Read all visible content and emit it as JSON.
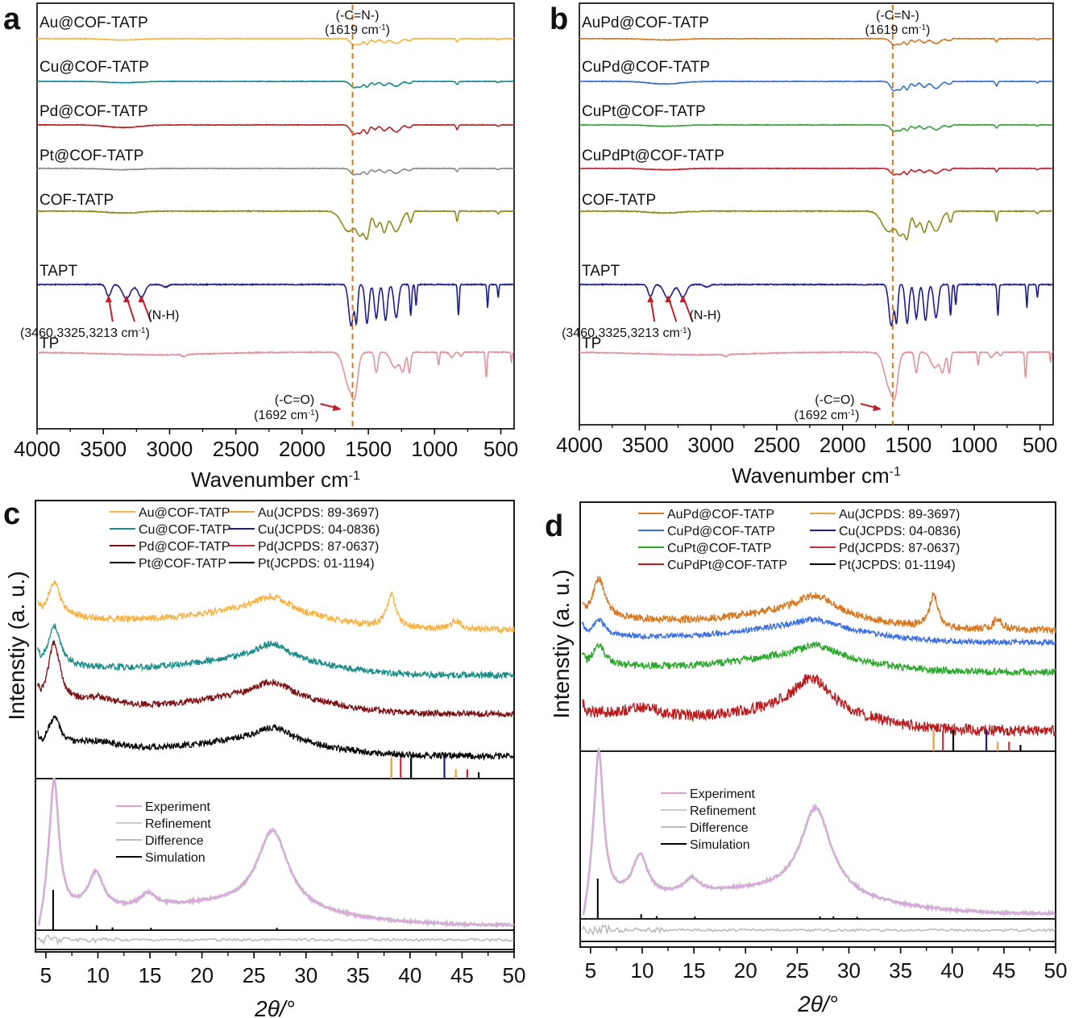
{
  "figure": {
    "panels": [
      "a",
      "b",
      "c",
      "d"
    ]
  },
  "chart_data": [
    {
      "panel": "a",
      "type": "line",
      "title": "",
      "xlabel": "Wavenumber cm-1",
      "xlabel_main": "Wavenumber cm",
      "xlabel_sup": "-1",
      "ylabel": "",
      "xlim": [
        4000,
        400
      ],
      "xticks": [
        4000,
        3500,
        3000,
        2500,
        2000,
        1500,
        1000,
        500
      ],
      "reference_line": {
        "x": 1619,
        "label1": "(-C=N-)",
        "label2": "(1619 cm",
        "sup": "-1",
        "close": ")",
        "color": "#d07a2a"
      },
      "series": [
        {
          "name": "Au@COF-TATP",
          "color": "#f2b441",
          "style": "cof"
        },
        {
          "name": "Cu@COF-TATP",
          "color": "#1f8a8c",
          "style": "cof"
        },
        {
          "name": "Pd@COF-TATP",
          "color": "#b3262a",
          "style": "cofdeep"
        },
        {
          "name": "Pt@COF-TATP",
          "color": "#8a8a8a",
          "style": "cof"
        },
        {
          "name": "COF-TATP",
          "color": "#8c8a1e",
          "style": "cofbig"
        },
        {
          "name": "TAPT",
          "color": "#1c1c8a",
          "style": "tapt"
        },
        {
          "name": "TP",
          "color": "#e0929a",
          "style": "tp"
        }
      ],
      "annotations": [
        {
          "text": "(N-H)",
          "peaks": [
            3460,
            3325,
            3213
          ]
        },
        {
          "text": "(3460,3325,3213 cm",
          "sup": "-1",
          "close": ")"
        },
        {
          "text": "(-C=O)",
          "peak": 1692
        },
        {
          "text": "(1692 cm",
          "sup": "-1",
          "close": ")"
        }
      ]
    },
    {
      "panel": "b",
      "type": "line",
      "title": "",
      "xlabel": "Wavenumber cm-1",
      "xlabel_main": "Wavenumber cm",
      "xlabel_sup": "-1",
      "ylabel": "",
      "xlim": [
        4000,
        400
      ],
      "xticks": [
        4000,
        3500,
        3000,
        2500,
        2000,
        1500,
        1000,
        500
      ],
      "reference_line": {
        "x": 1619,
        "label1": "(-C=N-)",
        "label2": "(1619 cm",
        "sup": "-1",
        "close": ")",
        "color": "#d07a2a"
      },
      "series": [
        {
          "name": "AuPd@COF-TATP",
          "color": "#d27a28",
          "style": "cof"
        },
        {
          "name": "CuPd@COF-TATP",
          "color": "#3a6fd0",
          "style": "cofdeep"
        },
        {
          "name": "CuPt@COF-TATP",
          "color": "#3aa23a",
          "style": "cof"
        },
        {
          "name": "CuPdPt@COF-TATP",
          "color": "#c8202a",
          "style": "cof"
        },
        {
          "name": "COF-TATP",
          "color": "#8c8a1e",
          "style": "cofbig"
        },
        {
          "name": "TAPT",
          "color": "#1c1c8a",
          "style": "tapt"
        },
        {
          "name": "TP",
          "color": "#e0929a",
          "style": "tp"
        }
      ],
      "annotations": [
        {
          "text": "(N-H)",
          "peaks": [
            3460,
            3325,
            3213
          ]
        },
        {
          "text": "(3460,3325,3213 cm",
          "sup": "-1",
          "close": ")"
        },
        {
          "text": "(-C=O)",
          "peak": 1692
        },
        {
          "text": "(1692 cm",
          "sup": "-1",
          "close": ")"
        }
      ]
    },
    {
      "panel": "c",
      "type": "line",
      "xlabel": "2θ/°",
      "ylabel": "Intenstiy (a. u.)",
      "xlim": [
        4,
        50
      ],
      "xticks": [
        5,
        10,
        15,
        20,
        25,
        30,
        35,
        40,
        45,
        50
      ],
      "series": [
        {
          "name": "Au@COF-TATP",
          "color": "#f7b241",
          "peaks": [
            [
              5.8,
              0.8
            ],
            [
              26.8,
              0.35
            ],
            [
              38.2,
              0.75
            ],
            [
              44.4,
              0.2
            ]
          ],
          "tail": 0.5
        },
        {
          "name": "Cu@COF-TATP",
          "color": "#1a8c8a",
          "peaks": [
            [
              5.8,
              1.0
            ],
            [
              26.8,
              0.4
            ]
          ],
          "tail": 0.4
        },
        {
          "name": "Pd@COF-TATP",
          "color": "#7a1014",
          "peaks": [
            [
              5.8,
              1.4
            ],
            [
              10,
              0.2
            ],
            [
              26.8,
              0.35
            ]
          ],
          "tail": 0.3
        },
        {
          "name": "Pt@COF-TATP",
          "color": "#000000",
          "peaks": [
            [
              5.8,
              0.8
            ],
            [
              10,
              0.2
            ],
            [
              26.8,
              0.4
            ]
          ],
          "tail": 0.4
        }
      ],
      "reference_series": [
        {
          "name": "Au(JCPDS: 89-3697)",
          "color": "#e0a040",
          "sticks": [
            [
              38.2,
              1.0
            ],
            [
              44.4,
              0.45
            ]
          ]
        },
        {
          "name": "Cu(JCPDS: 04-0836)",
          "color": "#1c1c8a",
          "sticks": [
            [
              43.3,
              1.0
            ]
          ]
        },
        {
          "name": "Pd(JCPDS: 87-0637)",
          "color": "#c0303a",
          "sticks": [
            [
              39.1,
              1.0
            ],
            [
              45.5,
              0.45
            ]
          ]
        },
        {
          "name": "Pt(JCPDS: 01-1194)",
          "color": "#000000",
          "sticks": [
            [
              40.1,
              1.0
            ],
            [
              46.6,
              0.3
            ]
          ]
        }
      ],
      "refinement": {
        "legend": [
          {
            "name": "Experiment",
            "color": "#dda0e0"
          },
          {
            "name": "Refinement",
            "color": "#cccccc"
          },
          {
            "name": "Difference",
            "color": "#bbbbbb"
          },
          {
            "name": "Simulation",
            "color": "#000000"
          }
        ],
        "experiment_peaks": [
          [
            5.8,
            1.0
          ],
          [
            9.8,
            0.28
          ],
          [
            14.8,
            0.1
          ],
          [
            26.8,
            0.6
          ]
        ],
        "simulation_sticks": [
          [
            5.7,
            1.0
          ],
          [
            9.9,
            0.08
          ],
          [
            11.4,
            0.03
          ],
          [
            15.1,
            0.02
          ],
          [
            27.2,
            0.02
          ]
        ]
      }
    },
    {
      "panel": "d",
      "type": "line",
      "xlabel": "2θ/°",
      "ylabel": "Intenstiy (a. u.)",
      "xlim": [
        4,
        50
      ],
      "xticks": [
        5,
        10,
        15,
        20,
        25,
        30,
        35,
        40,
        45,
        50
      ],
      "series": [
        {
          "name": "AuPd@COF-TATP",
          "color": "#d6761e",
          "peaks": [
            [
              5.8,
              0.9
            ],
            [
              26.8,
              0.4
            ],
            [
              38.2,
              0.75
            ],
            [
              44.4,
              0.25
            ]
          ],
          "tail": 0.5
        },
        {
          "name": "CuPd@COF-TATP",
          "color": "#3a6ee0",
          "peaks": [
            [
              5.8,
              0.4
            ],
            [
              26.8,
              0.2
            ]
          ],
          "tail": 0.3
        },
        {
          "name": "CuPt@COF-TATP",
          "color": "#2aa62a",
          "peaks": [
            [
              5.8,
              0.5
            ],
            [
              26.8,
              0.3
            ]
          ],
          "tail": 0.3
        },
        {
          "name": "CuPdPt@COF-TATP",
          "color": "#b81c1e",
          "peaks": [
            [
              10,
              0.2
            ],
            [
              26.4,
              0.7
            ]
          ],
          "tail": 0.6
        }
      ],
      "reference_series": [
        {
          "name": "Au(JCPDS: 89-3697)",
          "color": "#e0a040",
          "sticks": [
            [
              38.2,
              1.0
            ],
            [
              44.4,
              0.45
            ]
          ]
        },
        {
          "name": "Cu(JCPDS: 04-0836)",
          "color": "#1c1c8a",
          "sticks": [
            [
              43.3,
              1.0
            ]
          ]
        },
        {
          "name": "Pd(JCPDS: 87-0637)",
          "color": "#c0303a",
          "sticks": [
            [
              39.1,
              1.0
            ],
            [
              45.5,
              0.45
            ]
          ]
        },
        {
          "name": "Pt(JCPDS: 01-1194)",
          "color": "#000000",
          "sticks": [
            [
              40.1,
              1.0
            ],
            [
              46.6,
              0.3
            ]
          ]
        }
      ],
      "refinement": {
        "legend": [
          {
            "name": "Experiment",
            "color": "#dda0e0"
          },
          {
            "name": "Refinement",
            "color": "#cccccc"
          },
          {
            "name": "Difference",
            "color": "#bbbbbb"
          },
          {
            "name": "Simulation",
            "color": "#000000"
          }
        ],
        "experiment_peaks": [
          [
            5.8,
            1.0
          ],
          [
            9.8,
            0.28
          ],
          [
            14.8,
            0.1
          ],
          [
            26.8,
            0.6
          ]
        ],
        "simulation_sticks": [
          [
            5.7,
            1.0
          ],
          [
            9.9,
            0.08
          ],
          [
            11.4,
            0.03
          ],
          [
            15.1,
            0.02
          ],
          [
            27.2,
            0.02
          ],
          [
            28.5,
            0.02
          ],
          [
            30.8,
            0.01
          ]
        ]
      }
    }
  ]
}
